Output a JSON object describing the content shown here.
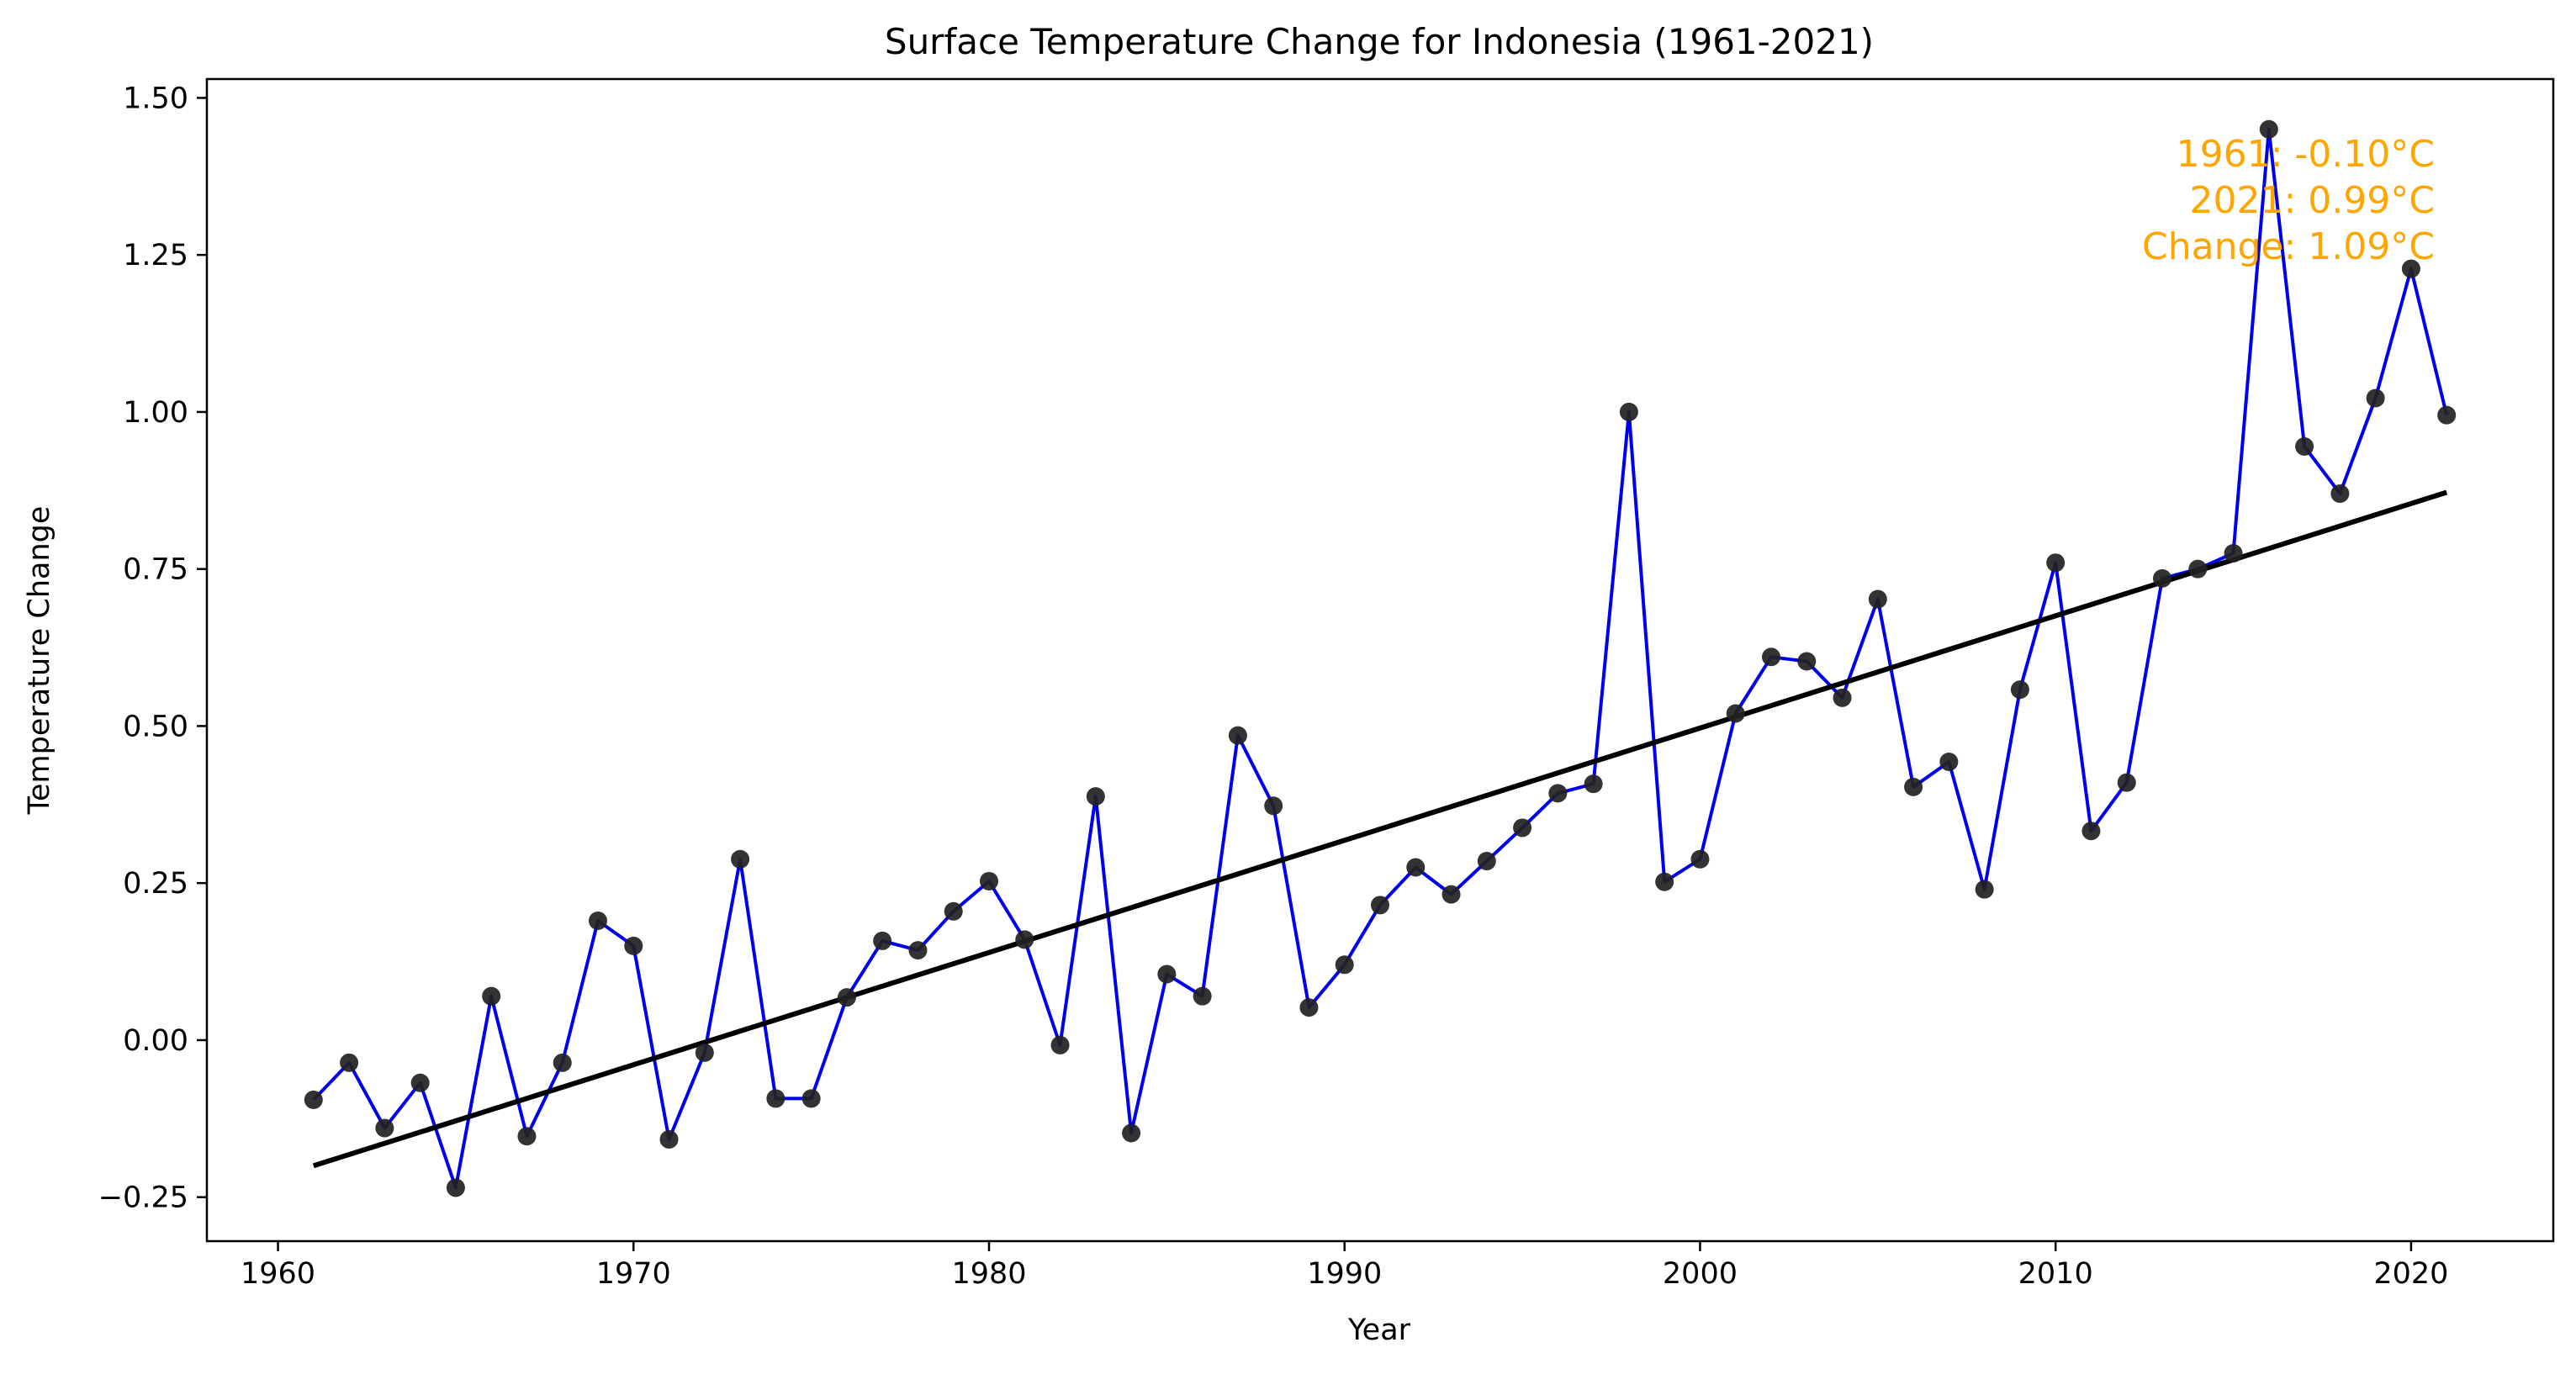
{
  "chart_data": {
    "type": "line",
    "title": "Surface Temperature Change for Indonesia (1961-2021)",
    "xlabel": "Year",
    "ylabel": "Temperature Change",
    "xlim": [
      1958,
      2024
    ],
    "ylim": [
      -0.32,
      1.53
    ],
    "x_ticks": [
      1960,
      1970,
      1980,
      1990,
      2000,
      2010,
      2020
    ],
    "x_tick_labels": [
      "1960",
      "1970",
      "1980",
      "1990",
      "2000",
      "2010",
      "2020"
    ],
    "y_ticks": [
      -0.25,
      0.0,
      0.25,
      0.5,
      0.75,
      1.0,
      1.25,
      1.5
    ],
    "y_tick_labels": [
      "−0.25",
      "0.00",
      "0.25",
      "0.50",
      "0.75",
      "1.00",
      "1.25",
      "1.50"
    ],
    "grid": false,
    "series": [
      {
        "line_color": "#0000ee",
        "marker_color": "#222222",
        "x": [
          1961,
          1962,
          1963,
          1964,
          1965,
          1966,
          1967,
          1968,
          1969,
          1970,
          1971,
          1972,
          1973,
          1974,
          1975,
          1976,
          1977,
          1978,
          1979,
          1980,
          1981,
          1982,
          1983,
          1984,
          1985,
          1986,
          1987,
          1988,
          1989,
          1990,
          1991,
          1992,
          1993,
          1994,
          1995,
          1996,
          1997,
          1998,
          1999,
          2000,
          2001,
          2002,
          2003,
          2004,
          2005,
          2006,
          2007,
          2008,
          2009,
          2010,
          2011,
          2012,
          2013,
          2014,
          2015,
          2016,
          2017,
          2018,
          2019,
          2020,
          2021
        ],
        "y": [
          -0.095,
          -0.036,
          -0.14,
          -0.068,
          -0.235,
          0.07,
          -0.153,
          -0.036,
          0.19,
          0.15,
          -0.158,
          -0.02,
          0.288,
          -0.093,
          -0.093,
          0.068,
          0.158,
          0.143,
          0.205,
          0.253,
          0.16,
          -0.008,
          0.388,
          -0.148,
          0.105,
          0.07,
          0.485,
          0.373,
          0.052,
          0.12,
          0.215,
          0.275,
          0.232,
          0.285,
          0.338,
          0.393,
          0.408,
          1.0,
          0.252,
          0.288,
          0.52,
          0.61,
          0.603,
          0.545,
          0.702,
          0.403,
          0.443,
          0.24,
          0.558,
          0.76,
          0.333,
          0.41,
          0.735,
          0.75,
          0.775,
          1.45,
          0.945,
          0.87,
          1.022,
          1.228,
          0.995
        ]
      },
      {
        "kind": "trend",
        "line_color": "#000000",
        "x": [
          1961,
          2021
        ],
        "y": [
          -0.2,
          0.872
        ]
      }
    ],
    "annotation": {
      "color": "#ffa500",
      "lines": [
        "1961: -0.10°C",
        "2021: 0.99°C",
        "Change: 1.09°C"
      ]
    }
  }
}
